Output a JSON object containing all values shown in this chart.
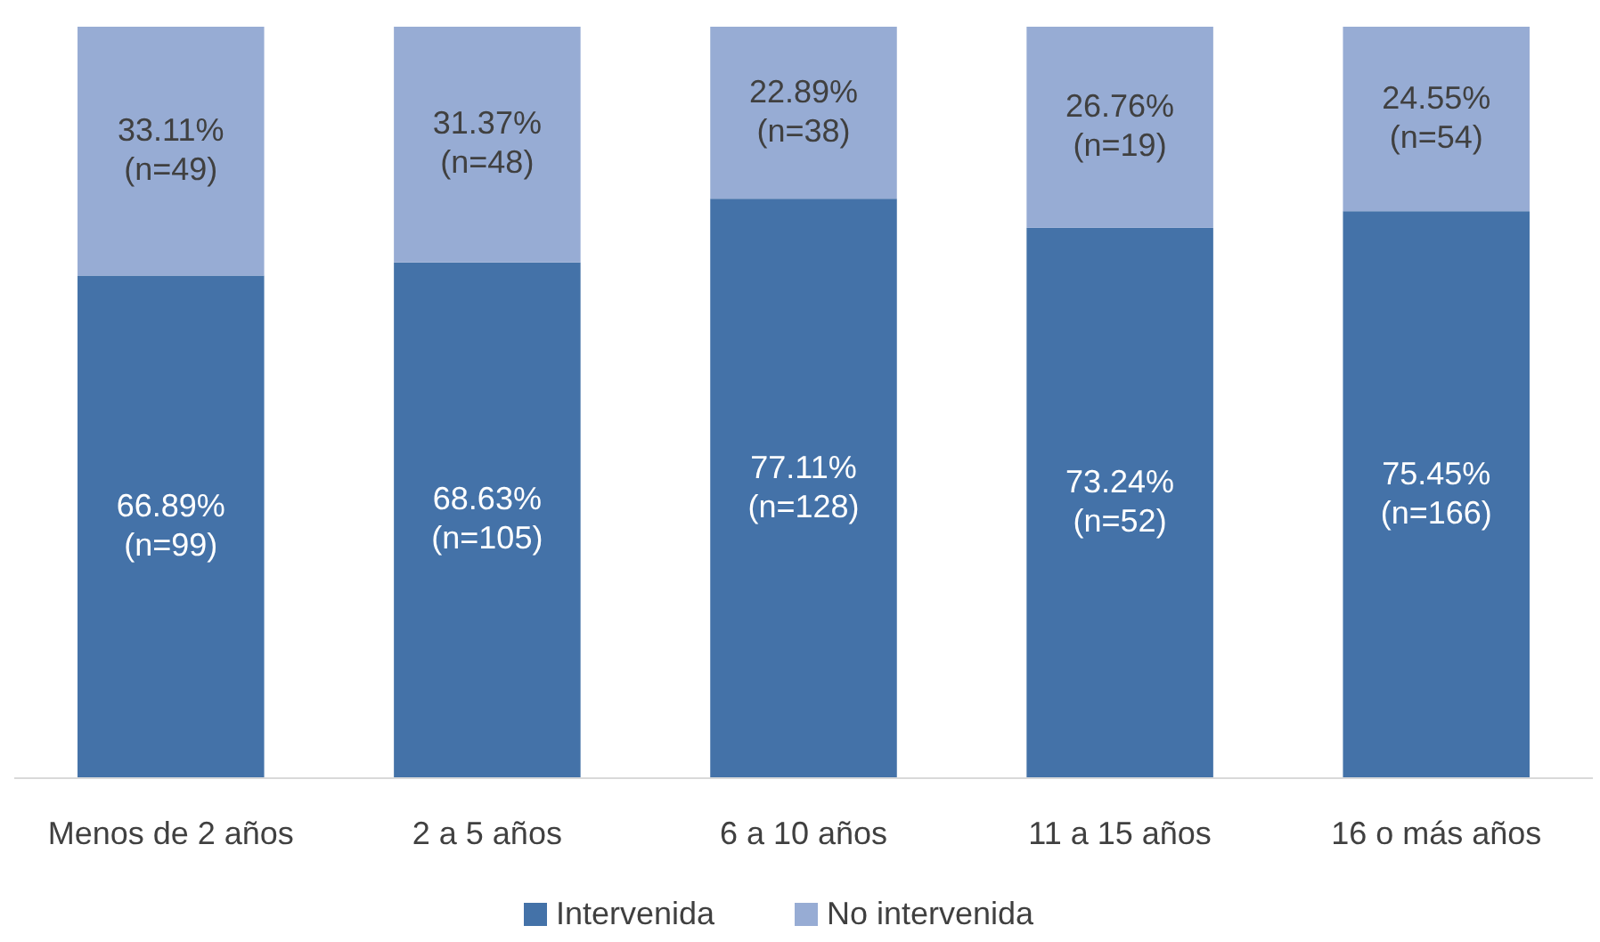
{
  "chart_data": {
    "type": "bar",
    "stacked": true,
    "legend": "bottom",
    "categories": [
      "Menos de 2 años",
      "2 a 5 años",
      "6 a 10 años",
      "11 a 15 años",
      "16 o más años"
    ],
    "series": [
      {
        "name": "Intervenida",
        "color": "#4472a8",
        "values": [
          66.89,
          68.63,
          77.11,
          73.24,
          75.45
        ],
        "value_labels": [
          "66.89%\n(n=99)",
          "68.63%\n(n=105)",
          "77.11%\n(n=128)",
          "73.24%\n(n=52)",
          "75.45%\n(n=166)"
        ]
      },
      {
        "name": "No intervenida",
        "color": "#97acd4",
        "values": [
          33.11,
          31.37,
          22.89,
          26.76,
          24.55
        ],
        "value_labels": [
          "33.11%\n(n=49)",
          "31.37%\n(n=48)",
          "22.89%\n(n=38)",
          "26.76%\n(n=19)",
          "24.55%\n(n=54)"
        ]
      }
    ]
  }
}
